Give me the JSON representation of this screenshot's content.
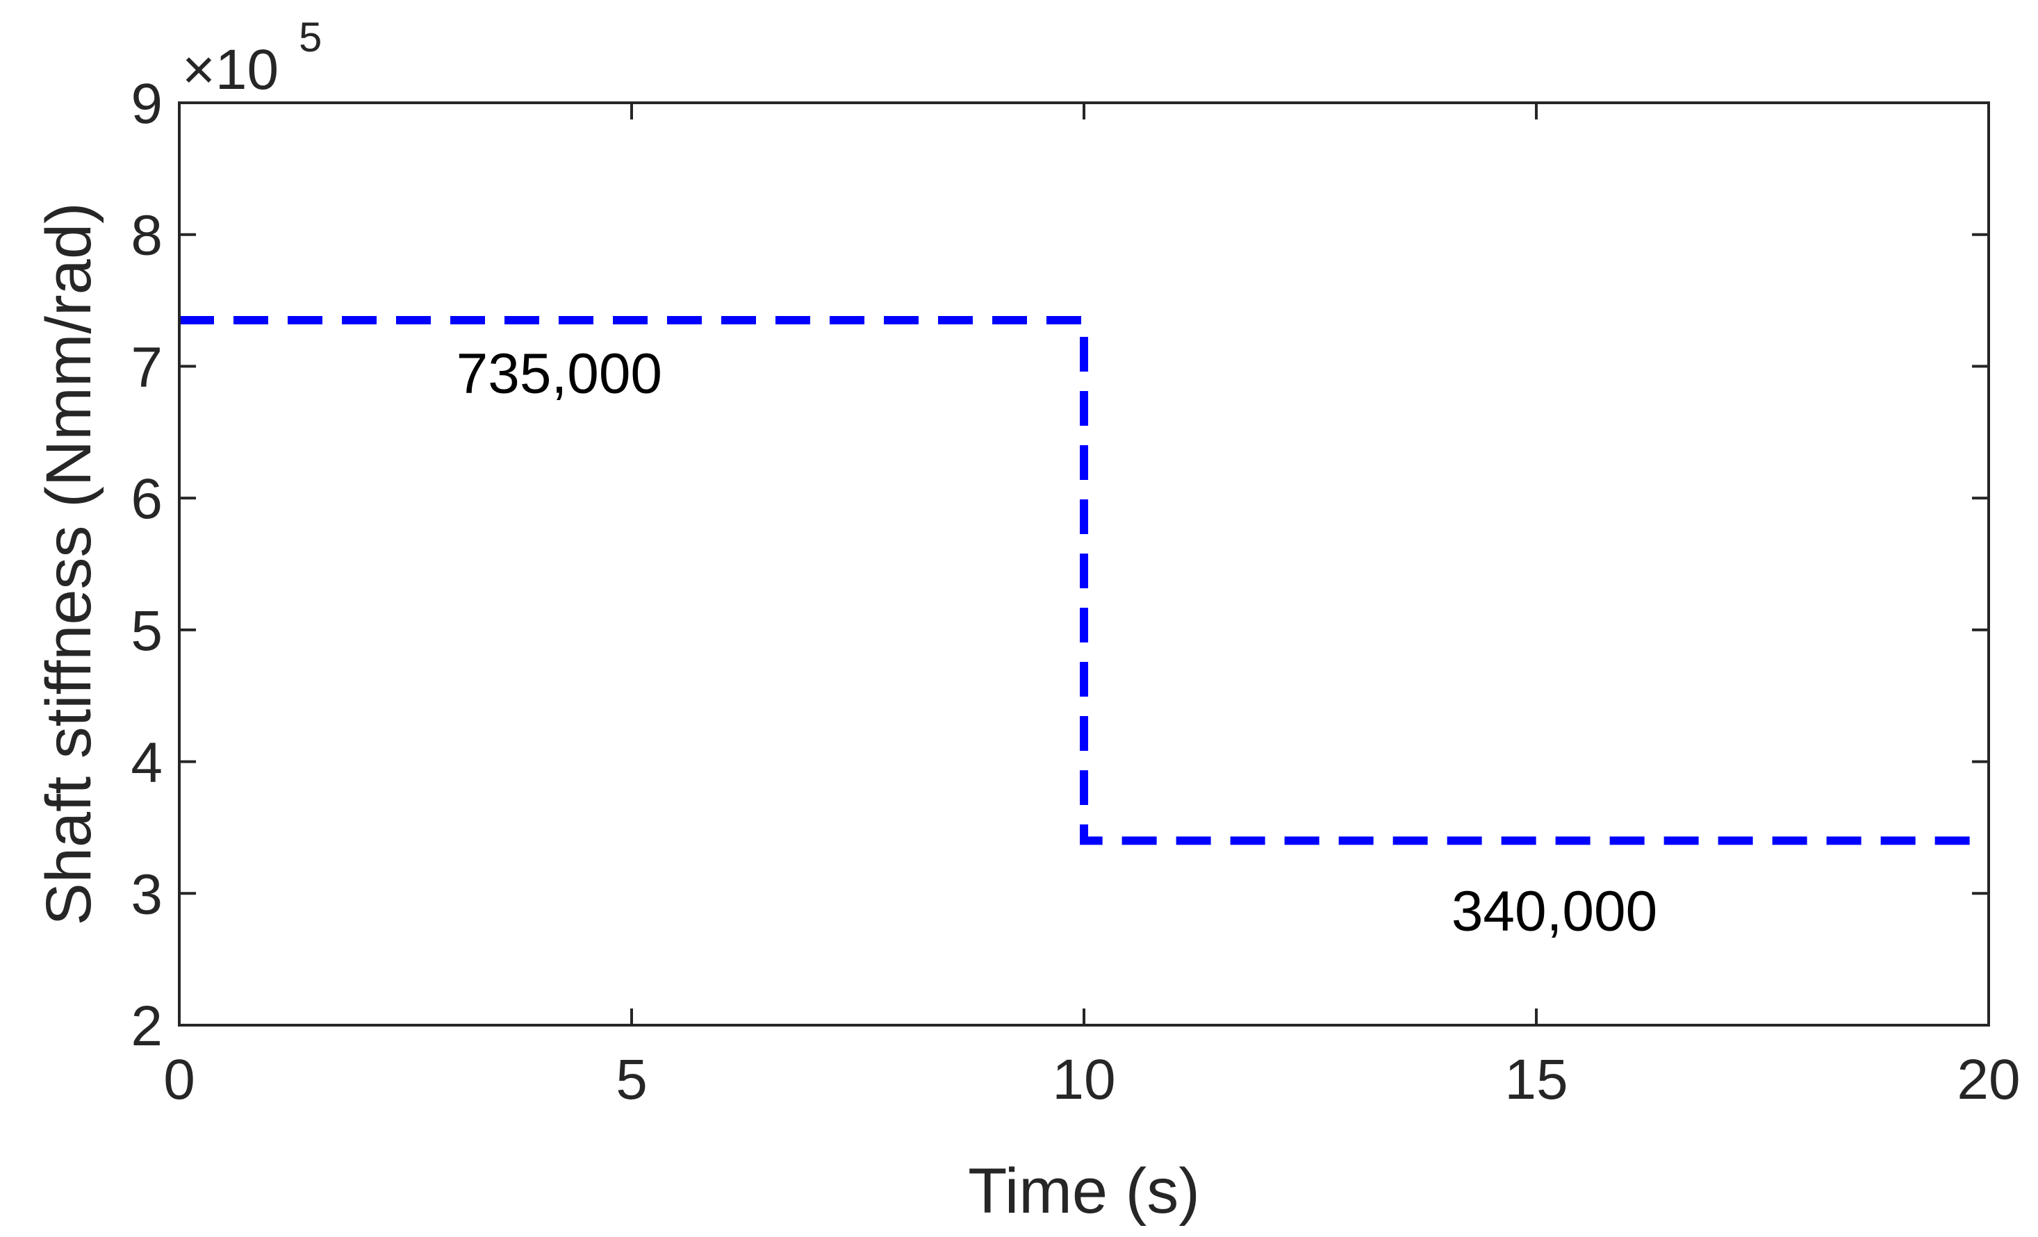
{
  "chart_data": {
    "type": "line",
    "xlabel": "Time (s)",
    "ylabel": "Shaft stiffness (Nmm/rad)",
    "xlim": [
      0,
      20
    ],
    "ylim": [
      200000,
      900000
    ],
    "x_ticks": [
      0,
      5,
      10,
      15,
      20
    ],
    "y_ticks": [
      2,
      3,
      4,
      5,
      6,
      7,
      8,
      9
    ],
    "y_multiplier": "×10",
    "y_multiplier_exp": "5",
    "grid": false,
    "series": [
      {
        "color": "#0000ff",
        "line_style": "dashed",
        "x": [
          0,
          10,
          10,
          20
        ],
        "y": [
          735000,
          735000,
          340000,
          340000
        ]
      }
    ],
    "annotations": [
      {
        "text": "735,000",
        "x": 4.2,
        "y": 680000
      },
      {
        "text": "340,000",
        "x": 15.2,
        "y": 272000
      }
    ]
  }
}
